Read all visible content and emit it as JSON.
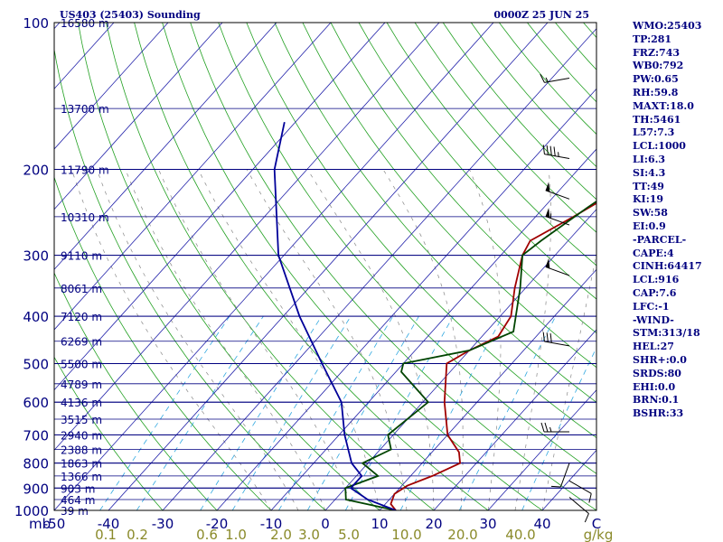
{
  "header": {
    "station": "US403 (25403) Sounding",
    "time": "0000Z 25 JUN 25"
  },
  "indices": [
    "WMO:25403",
    "TP:281",
    "FRZ:743",
    "WB0:792",
    "PW:0.65",
    "RH:59.8",
    "MAXT:18.0",
    "TH:5461",
    "L57:7.3",
    "LCL:1000",
    "LI:6.3",
    "SI:4.3",
    "TT:49",
    "KI:19",
    "SW:58",
    "EI:0.9",
    "-PARCEL-",
    "CAPE:4",
    "CINH:64417",
    "LCL:916",
    "CAP:7.6",
    "LFC:-1",
    "-WIND-",
    "STM:313/18",
    "HEL:27",
    "SHR+:0.0",
    "SRDS:80",
    "EHI:0.0",
    "BRN:0.1",
    "BSHR:33"
  ],
  "chart_data": {
    "type": "line",
    "title": "",
    "xlabel": "",
    "ylabel": "",
    "x_unit_label": "C",
    "pressure_unit_label": "mb",
    "mixing_ratio_unit_label": "g/kg",
    "ylim": [
      1000,
      100
    ],
    "xlim": [
      -50,
      50
    ],
    "pressure_ticks": [
      100,
      200,
      300,
      400,
      500,
      600,
      700,
      800,
      900,
      1000
    ],
    "temperature_ticks": [
      "-50",
      "-40",
      "-30",
      "-20",
      "-10",
      "0",
      "10",
      "20",
      "30",
      "40",
      "C"
    ],
    "mixing_ratio_ticks": [
      "0.1",
      "0.2",
      "0.6",
      "1.0",
      "2.0",
      "3.0",
      "5.0",
      "10.0",
      "20.0",
      "40.0",
      "g/kg"
    ],
    "height_labels": [
      "16580 m",
      "13700 m",
      "11790 m",
      "10310 m",
      "9110 m",
      "8061 m",
      "7120 m",
      "6269 m",
      "5500 m",
      "4789 m",
      "4136 m",
      "3515 m",
      "2940 m",
      "2388 m",
      "1863 m",
      "1366 m",
      "903 m",
      "464 m",
      "39 m"
    ],
    "series": [
      {
        "name": "",
        "color": "#a00000",
        "points": [
          [
            1000,
            13
          ],
          [
            970,
            11
          ],
          [
            925,
            10
          ],
          [
            890,
            11
          ],
          [
            850,
            14
          ],
          [
            800,
            17
          ],
          [
            760,
            15
          ],
          [
            700,
            10
          ],
          [
            600,
            4
          ],
          [
            500,
            -2
          ],
          [
            470,
            0
          ],
          [
            440,
            3
          ],
          [
            400,
            2
          ],
          [
            350,
            -2
          ],
          [
            300,
            -6
          ],
          [
            280,
            -7
          ],
          [
            250,
            -3
          ],
          [
            220,
            1
          ],
          [
            200,
            3
          ],
          [
            150,
            11
          ],
          [
            100,
            15
          ]
        ]
      },
      {
        "name": "",
        "color": "#004400",
        "points": [
          [
            1000,
            13
          ],
          [
            950,
            2
          ],
          [
            900,
            0
          ],
          [
            850,
            4
          ],
          [
            800,
            -1
          ],
          [
            750,
            2
          ],
          [
            700,
            -1
          ],
          [
            600,
            1
          ],
          [
            520,
            -9
          ],
          [
            500,
            -10
          ],
          [
            470,
            0
          ],
          [
            430,
            5
          ],
          [
            350,
            -1
          ],
          [
            300,
            -6
          ],
          [
            280,
            -5
          ],
          [
            240,
            -2
          ],
          [
            200,
            2
          ],
          [
            150,
            4
          ],
          [
            100,
            11
          ]
        ]
      },
      {
        "name": "",
        "color": "#000099",
        "points": [
          [
            1000,
            13
          ],
          [
            950,
            6
          ],
          [
            900,
            1
          ],
          [
            850,
            1
          ],
          [
            800,
            -3
          ],
          [
            700,
            -9
          ],
          [
            600,
            -15
          ],
          [
            500,
            -25
          ],
          [
            400,
            -37
          ],
          [
            300,
            -51
          ],
          [
            200,
            -66
          ],
          [
            160,
            -72
          ]
        ]
      }
    ],
    "wind_barbs": [
      {
        "p": 130,
        "dir": 260,
        "speed": 15
      },
      {
        "p": 190,
        "dir": 280,
        "speed": 45
      },
      {
        "p": 230,
        "dir": 290,
        "speed": 50
      },
      {
        "p": 260,
        "dir": 290,
        "speed": 55
      },
      {
        "p": 330,
        "dir": 290,
        "speed": 50
      },
      {
        "p": 460,
        "dir": 280,
        "speed": 30
      },
      {
        "p": 690,
        "dir": 270,
        "speed": 25
      },
      {
        "p": 800,
        "dir": 200,
        "speed": 10
      },
      {
        "p": 870,
        "dir": 120,
        "speed": 10
      },
      {
        "p": 940,
        "dir": 130,
        "speed": 10
      }
    ]
  }
}
